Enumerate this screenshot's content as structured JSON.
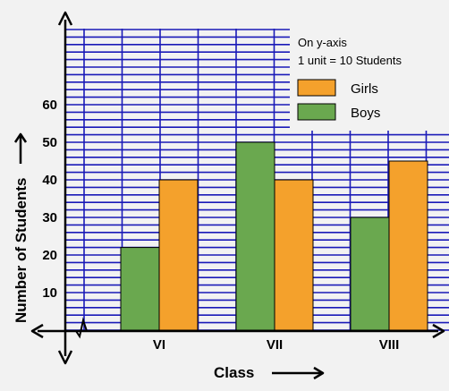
{
  "chart_data": {
    "type": "bar",
    "categories": [
      "VI",
      "VII",
      "VIII"
    ],
    "series": [
      {
        "name": "Boys",
        "values": [
          22,
          50,
          30
        ],
        "color": "#6aa84f"
      },
      {
        "name": "Girls",
        "values": [
          40,
          40,
          45
        ],
        "color": "#f4a12c"
      }
    ],
    "yticks": [
      10,
      20,
      30,
      40,
      50,
      60
    ],
    "ylim": [
      0,
      80
    ],
    "xlabel": "Class",
    "ylabel": "Number of Students",
    "grid": true,
    "grid_color": "#1a1ab8",
    "background_color": "#f2f2f2",
    "legend_position": "top-right",
    "scale_note": [
      "On y-axis",
      "1 unit = 10 Students"
    ],
    "legend": [
      {
        "label": "Girls",
        "color": "#f4a12c"
      },
      {
        "label": "Boys",
        "color": "#6aa84f"
      }
    ]
  }
}
